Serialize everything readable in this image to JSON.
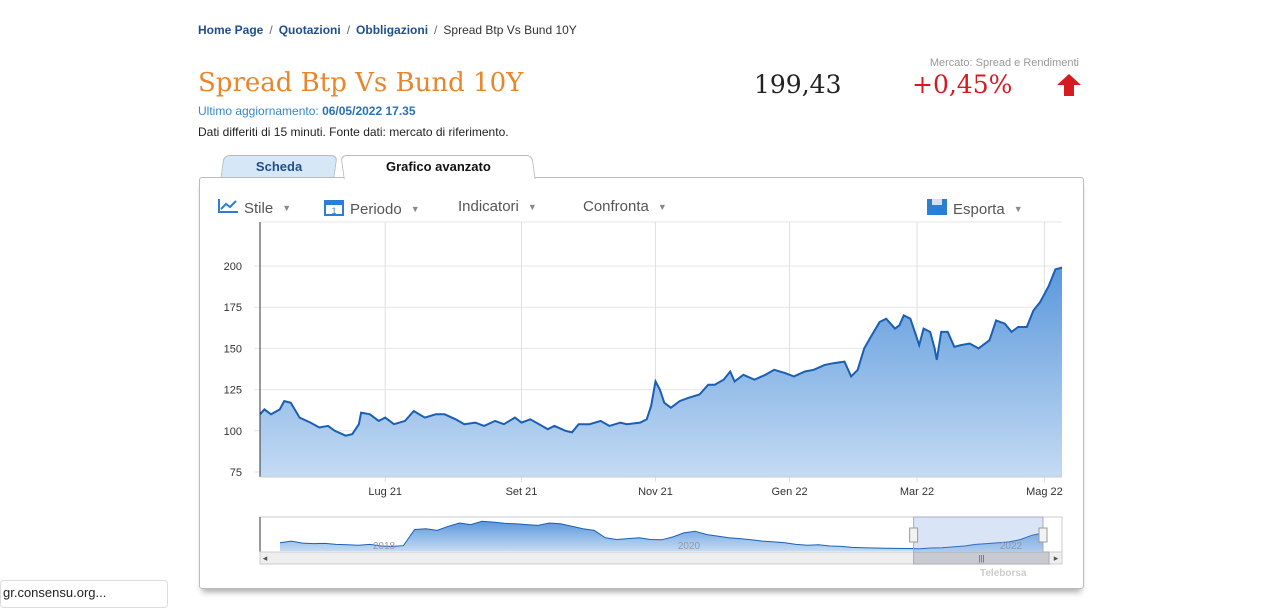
{
  "breadcrumb": {
    "items": [
      "Home Page",
      "Quotazioni",
      "Obbligazioni"
    ],
    "current": "Spread Btp Vs Bund 10Y",
    "separator": "/"
  },
  "header": {
    "title": "Spread Btp Vs Bund 10Y",
    "updated_label": "Ultimo aggiornamento:",
    "updated_value": "06/05/2022 17.35",
    "delay_note": "Dati differiti di 15 minuti.  Fonte dati: mercato di riferimento.",
    "market": "Mercato: Spread e Rendimenti",
    "price": "199,43",
    "change": "+0,45%",
    "change_color": "#d71920"
  },
  "tabs": [
    {
      "label": "Scheda"
    },
    {
      "label": "Grafico avanzato",
      "active": true
    }
  ],
  "toolbar": {
    "stile": "Stile",
    "periodo": "Periodo",
    "indicatori": "Indicatori",
    "confronta": "Confronta",
    "esporta": "Esporta"
  },
  "credit": "Teleborsa",
  "cookie_bar": "gr.consensu.org...",
  "chart_data": {
    "type": "area",
    "x_unit": "days since 2021-05-06",
    "xlim": [
      0,
      365
    ],
    "ylim": [
      72,
      228
    ],
    "yticks": [
      75,
      100,
      125,
      150,
      175,
      200
    ],
    "xticks": [
      {
        "x": 57,
        "label": "Lug 21"
      },
      {
        "x": 119,
        "label": "Set 21"
      },
      {
        "x": 180,
        "label": "Nov 21"
      },
      {
        "x": 241,
        "label": "Gen 22"
      },
      {
        "x": 299,
        "label": "Mar 22"
      },
      {
        "x": 357,
        "label": "Mag 22"
      }
    ],
    "x": [
      0,
      2,
      5,
      9,
      11,
      14,
      18,
      23,
      27,
      31,
      34,
      39,
      42,
      45,
      46,
      50,
      54,
      57,
      61,
      66,
      70,
      75,
      80,
      84,
      89,
      93,
      98,
      102,
      107,
      111,
      116,
      119,
      123,
      127,
      131,
      134,
      139,
      142,
      145,
      150,
      155,
      159,
      164,
      167,
      173,
      176,
      178,
      180,
      182,
      184,
      187,
      191,
      195,
      200,
      204,
      207,
      211,
      214,
      216,
      220,
      225,
      230,
      234,
      239,
      243,
      248,
      252,
      257,
      261,
      266,
      269,
      272,
      275,
      278,
      282,
      285,
      289,
      291,
      293,
      296,
      298,
      300,
      302,
      305,
      307,
      308,
      310,
      313,
      316,
      319,
      323,
      327,
      332,
      335,
      339,
      342,
      345,
      349,
      352,
      355,
      359,
      362,
      365
    ],
    "values": [
      110,
      113,
      110,
      113,
      118,
      117,
      108,
      105,
      102,
      103,
      100,
      97,
      98,
      104,
      111,
      110,
      106,
      108,
      104,
      106,
      112,
      108,
      110,
      110,
      107,
      104,
      105,
      103,
      106,
      104,
      108,
      105,
      107,
      104,
      101,
      103,
      100,
      99,
      104,
      104,
      106,
      103,
      105,
      104,
      105,
      107,
      115,
      130,
      125,
      117,
      114,
      118,
      120,
      122,
      128,
      128,
      131,
      136,
      130,
      134,
      131,
      134,
      137,
      135,
      133,
      136,
      137,
      140,
      141,
      142,
      133,
      137,
      150,
      157,
      166,
      168,
      162,
      164,
      170,
      168,
      160,
      152,
      162,
      160,
      150,
      143,
      160,
      160,
      151,
      152,
      153,
      150,
      155,
      167,
      165,
      160,
      163,
      163,
      173,
      178,
      188,
      198,
      199
    ],
    "navigator": {
      "labels": [
        "2018",
        "2020",
        "2022"
      ],
      "values": [
        140,
        150,
        138,
        135,
        136,
        130,
        128,
        125,
        130,
        120,
        118,
        122,
        220,
        225,
        215,
        240,
        260,
        250,
        270,
        265,
        258,
        255,
        250,
        245,
        260,
        255,
        240,
        225,
        215,
        170,
        160,
        165,
        170,
        160,
        158,
        175,
        200,
        210,
        190,
        180,
        170,
        165,
        158,
        150,
        145,
        140,
        130,
        125,
        128,
        120,
        118,
        112,
        110,
        108,
        107,
        106,
        105,
        104,
        108,
        110,
        115,
        120,
        130,
        135,
        140,
        145,
        160,
        185,
        200
      ]
    },
    "selection_start": 0.815
  }
}
